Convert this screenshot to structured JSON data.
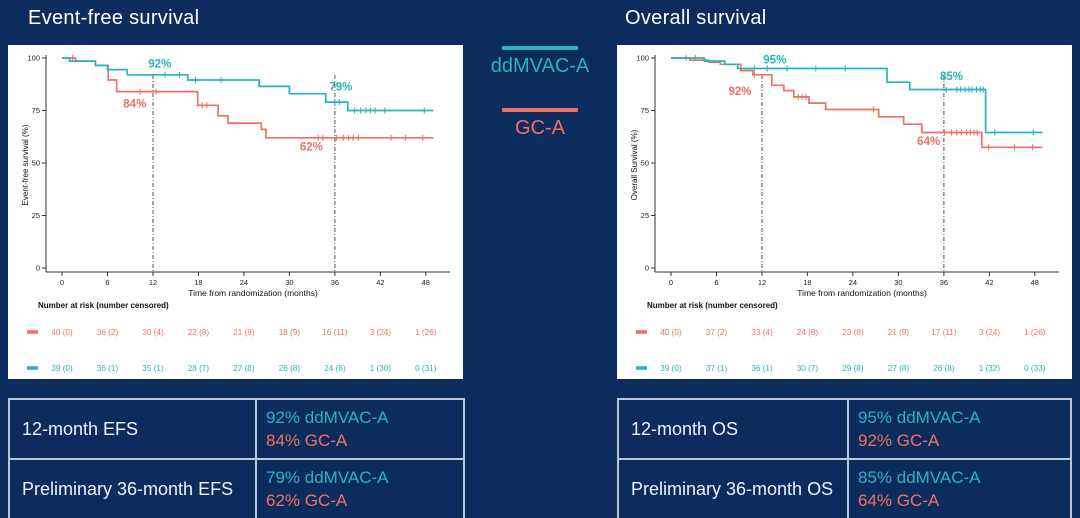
{
  "colors": {
    "background": "#0d2c5e",
    "teal": "#2ab3bf",
    "salmon": "#ef7165",
    "panel": "#ffffff",
    "table_border": "#b9c6da",
    "axis": "#333333",
    "ref_line": "#3d3d3d"
  },
  "legend": {
    "series": [
      {
        "label": "ddMVAC-A",
        "color": "teal"
      },
      {
        "label": "GC-A",
        "color": "salmon"
      }
    ]
  },
  "chart_data": [
    {
      "type": "line",
      "subtype": "kaplan-meier-step",
      "title": "Event-free survival",
      "xlabel": "Time from randomization (months)",
      "ylabel": "Event-free survival (%)",
      "xticks": [
        0,
        6,
        12,
        18,
        24,
        30,
        36,
        42,
        48
      ],
      "yticks": [
        0,
        25,
        50,
        75,
        100
      ],
      "xlim": [
        0,
        49
      ],
      "ylim": [
        0,
        100
      ],
      "ref_months": [
        12,
        36
      ],
      "risk_header": "Number at risk (number censored)",
      "series": [
        {
          "id": "gca",
          "name": "GC-A",
          "color": "salmon",
          "steps": [
            [
              0,
              100
            ],
            [
              1.8,
              98.5
            ],
            [
              4.4,
              96.5
            ],
            [
              6.1,
              89.5
            ],
            [
              7.2,
              84
            ],
            [
              17.9,
              77.5
            ],
            [
              20.6,
              72.5
            ],
            [
              21.9,
              69
            ],
            [
              26.3,
              66
            ],
            [
              26.9,
              62
            ]
          ],
          "xend": 49,
          "censor_marks": [
            [
              1.4,
              100
            ],
            [
              10.3,
              84
            ],
            [
              12.4,
              84
            ],
            [
              18.5,
              77.5
            ],
            [
              19.1,
              77.5
            ],
            [
              33.8,
              62
            ],
            [
              34.4,
              62
            ],
            [
              36.2,
              62
            ],
            [
              37.1,
              62
            ],
            [
              37.8,
              62
            ],
            [
              38.4,
              62
            ],
            [
              39.1,
              62
            ],
            [
              43.4,
              62
            ],
            [
              45.3,
              62
            ],
            [
              47.6,
              62
            ]
          ],
          "annotations": [
            {
              "text": "84%",
              "ax": 9.6,
              "ay": 76.5
            },
            {
              "text": "62%",
              "ax": 32.9,
              "ay": 56
            }
          ],
          "risk_values": [
            "40 (0)",
            "36 (2)",
            "30 (4)",
            "22 (8)",
            "21 (8)",
            "18 (9)",
            "16 (11)",
            "3 (24)",
            "1 (26)"
          ]
        },
        {
          "id": "ddmvac",
          "name": "ddMVAC-A",
          "color": "teal",
          "steps": [
            [
              0,
              100
            ],
            [
              1,
              98.5
            ],
            [
              4.4,
              96.5
            ],
            [
              6,
              94.5
            ],
            [
              8.6,
              92
            ],
            [
              16.6,
              89.5
            ],
            [
              26,
              86.5
            ],
            [
              30,
              83
            ],
            [
              34.8,
              79
            ],
            [
              37.7,
              75
            ]
          ],
          "xend": 49,
          "censor_marks": [
            [
              13.6,
              92
            ],
            [
              15.5,
              92
            ],
            [
              17.6,
              89.5
            ],
            [
              21,
              89.5
            ],
            [
              36,
              79
            ],
            [
              36.6,
              79
            ],
            [
              38.6,
              75
            ],
            [
              39.4,
              75
            ],
            [
              40.1,
              75
            ],
            [
              40.7,
              75
            ],
            [
              41.3,
              75
            ],
            [
              42.6,
              75
            ],
            [
              47.8,
              75
            ]
          ],
          "annotations": [
            {
              "text": "92%",
              "ax": 12.9,
              "ay": 95.5
            },
            {
              "text": "79%",
              "ax": 36.8,
              "ay": 84.5
            }
          ],
          "risk_values": [
            "39 (0)",
            "36 (1)",
            "35 (1)",
            "28 (7)",
            "27 (8)",
            "26 (8)",
            "24 (8)",
            "1 (30)",
            "0 (31)"
          ]
        }
      ],
      "summary_rows": [
        {
          "label": "12-month EFS",
          "values": [
            {
              "text": "92% ddMVAC-A",
              "color": "teal"
            },
            {
              "text": "84% GC-A",
              "color": "salmon"
            }
          ]
        },
        {
          "label": "Preliminary 36-month EFS",
          "values": [
            {
              "text": "79% ddMVAC-A",
              "color": "teal"
            },
            {
              "text": "62% GC-A",
              "color": "salmon"
            }
          ]
        }
      ]
    },
    {
      "type": "line",
      "subtype": "kaplan-meier-step",
      "title": "Overall survival",
      "xlabel": "Time from randomization (months)",
      "ylabel": "Overall Survival (%)",
      "xticks": [
        0,
        6,
        12,
        18,
        24,
        30,
        36,
        42,
        48
      ],
      "yticks": [
        0,
        25,
        50,
        75,
        100
      ],
      "xlim": [
        0,
        49
      ],
      "ylim": [
        0,
        100
      ],
      "ref_months": [
        12,
        36
      ],
      "risk_header": "Number at risk (number censored)",
      "series": [
        {
          "id": "gca",
          "name": "GC-A",
          "color": "salmon",
          "steps": [
            [
              0,
              100
            ],
            [
              2.5,
              99
            ],
            [
              5,
              98
            ],
            [
              6.5,
              97
            ],
            [
              9.2,
              94
            ],
            [
              10.8,
              92
            ],
            [
              13.3,
              87
            ],
            [
              14.9,
              84.5
            ],
            [
              16.2,
              81.5
            ],
            [
              18.2,
              78.5
            ],
            [
              20.4,
              75.5
            ],
            [
              27.4,
              72
            ],
            [
              30.7,
              68.5
            ],
            [
              33.1,
              64.5
            ],
            [
              41,
              57.5
            ]
          ],
          "xend": 49,
          "censor_marks": [
            [
              2,
              100
            ],
            [
              3.2,
              100
            ],
            [
              11,
              92
            ],
            [
              16.8,
              81.5
            ],
            [
              17.3,
              81.5
            ],
            [
              17.8,
              81.5
            ],
            [
              26.7,
              75.5
            ],
            [
              36.1,
              64.5
            ],
            [
              37,
              64.5
            ],
            [
              37.7,
              64.5
            ],
            [
              38.3,
              64.5
            ],
            [
              39,
              64.5
            ],
            [
              39.5,
              64.5
            ],
            [
              40,
              64.5
            ],
            [
              40.4,
              64.5
            ],
            [
              41.9,
              57.5
            ],
            [
              45.3,
              57.5
            ],
            [
              47.7,
              57.5
            ]
          ],
          "annotations": [
            {
              "text": "92%",
              "ax": 9.1,
              "ay": 82.5
            },
            {
              "text": "64%",
              "ax": 34,
              "ay": 58.5
            }
          ],
          "risk_values": [
            "40 (0)",
            "37 (2)",
            "33 (4)",
            "24 (8)",
            "23 (8)",
            "21 (9)",
            "17 (11)",
            "3 (24)",
            "1 (26)"
          ]
        },
        {
          "id": "ddmvac",
          "name": "ddMVAC-A",
          "color": "teal",
          "steps": [
            [
              0,
              100
            ],
            [
              4.4,
              98.5
            ],
            [
              7.1,
              97
            ],
            [
              8.8,
              95
            ],
            [
              28.5,
              88.5
            ],
            [
              31.5,
              85
            ],
            [
              41.5,
              64.5
            ]
          ],
          "xend": 49,
          "censor_marks": [
            [
              11,
              95
            ],
            [
              12.7,
              95
            ],
            [
              15.3,
              95
            ],
            [
              19.1,
              95
            ],
            [
              23,
              95
            ],
            [
              36.3,
              85
            ],
            [
              37.7,
              85
            ],
            [
              38.2,
              85
            ],
            [
              38.8,
              85
            ],
            [
              39.3,
              85
            ],
            [
              39.7,
              85
            ],
            [
              40.3,
              85
            ],
            [
              40.8,
              85
            ],
            [
              41.2,
              85
            ],
            [
              42.7,
              64.5
            ],
            [
              47.8,
              64.5
            ]
          ],
          "annotations": [
            {
              "text": "95%",
              "ax": 13.7,
              "ay": 97.5
            },
            {
              "text": "85%",
              "ax": 37,
              "ay": 89.5
            }
          ],
          "risk_values": [
            "39 (0)",
            "37 (1)",
            "36 (1)",
            "30 (7)",
            "29 (8)",
            "27 (8)",
            "26 (8)",
            "1 (32)",
            "0 (33)"
          ]
        }
      ],
      "summary_rows": [
        {
          "label": "12-month OS",
          "values": [
            {
              "text": "95% ddMVAC-A",
              "color": "teal"
            },
            {
              "text": "92% GC-A",
              "color": "salmon"
            }
          ]
        },
        {
          "label": "Preliminary 36-month OS",
          "values": [
            {
              "text": "85% ddMVAC-A",
              "color": "teal"
            },
            {
              "text": "64% GC-A",
              "color": "salmon"
            }
          ]
        }
      ]
    }
  ]
}
